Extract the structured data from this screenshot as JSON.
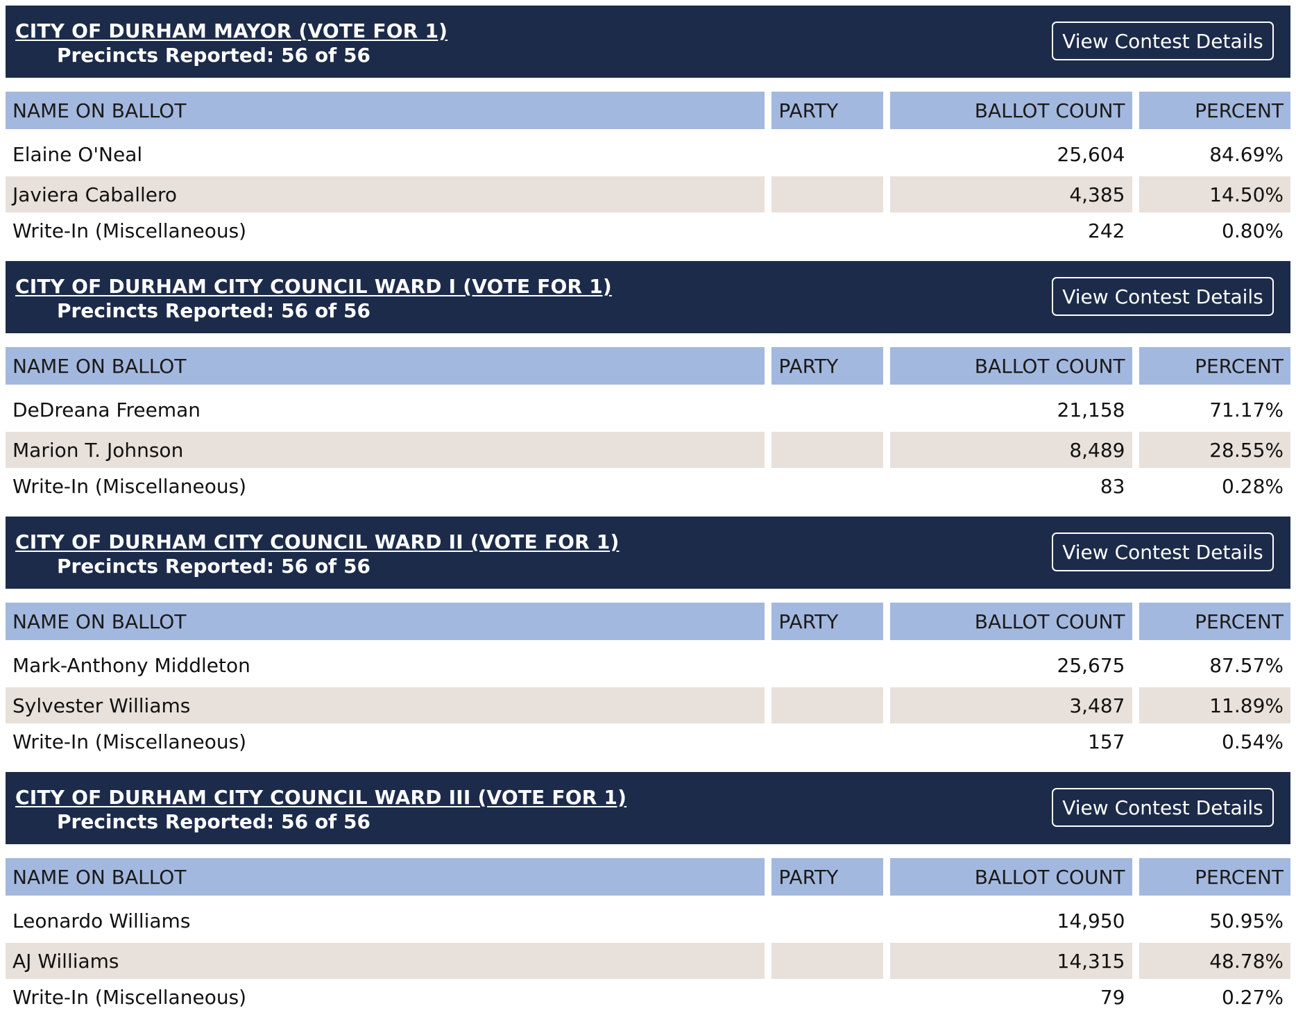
{
  "contests": [
    {
      "title": "CITY OF DURHAM MAYOR (VOTE FOR 1)",
      "precincts_label": "Precincts Reported:",
      "precincts_value": "56 of 56",
      "button_label": "View Contest Details",
      "columns": [
        "NAME ON BALLOT",
        "PARTY",
        "BALLOT COUNT",
        "PERCENT"
      ],
      "rows": [
        {
          "name": "Elaine O'Neal",
          "party": "",
          "count": "25,604",
          "percent": "84.69%"
        },
        {
          "name": "Javiera Caballero",
          "party": "",
          "count": "4,385",
          "percent": "14.50%"
        },
        {
          "name": "Write-In (Miscellaneous)",
          "party": "",
          "count": "242",
          "percent": "0.80%"
        }
      ]
    },
    {
      "title": "CITY OF DURHAM CITY COUNCIL WARD I (VOTE FOR 1)",
      "precincts_label": "Precincts Reported:",
      "precincts_value": "56 of 56",
      "button_label": "View Contest Details",
      "columns": [
        "NAME ON BALLOT",
        "PARTY",
        "BALLOT COUNT",
        "PERCENT"
      ],
      "rows": [
        {
          "name": "DeDreana Freeman",
          "party": "",
          "count": "21,158",
          "percent": "71.17%"
        },
        {
          "name": "Marion T. Johnson",
          "party": "",
          "count": "8,489",
          "percent": "28.55%"
        },
        {
          "name": "Write-In (Miscellaneous)",
          "party": "",
          "count": "83",
          "percent": "0.28%"
        }
      ]
    },
    {
      "title": "CITY OF DURHAM CITY COUNCIL WARD II (VOTE FOR 1)",
      "precincts_label": "Precincts Reported:",
      "precincts_value": "56 of 56",
      "button_label": "View Contest Details",
      "columns": [
        "NAME ON BALLOT",
        "PARTY",
        "BALLOT COUNT",
        "PERCENT"
      ],
      "rows": [
        {
          "name": "Mark-Anthony Middleton",
          "party": "",
          "count": "25,675",
          "percent": "87.57%"
        },
        {
          "name": "Sylvester Williams",
          "party": "",
          "count": "3,487",
          "percent": "11.89%"
        },
        {
          "name": "Write-In (Miscellaneous)",
          "party": "",
          "count": "157",
          "percent": "0.54%"
        }
      ]
    },
    {
      "title": "CITY OF DURHAM CITY COUNCIL WARD III (VOTE FOR 1)",
      "precincts_label": "Precincts Reported:",
      "precincts_value": "56 of 56",
      "button_label": "View Contest Details",
      "columns": [
        "NAME ON BALLOT",
        "PARTY",
        "BALLOT COUNT",
        "PERCENT"
      ],
      "rows": [
        {
          "name": "Leonardo Williams",
          "party": "",
          "count": "14,950",
          "percent": "50.95%"
        },
        {
          "name": "AJ Williams",
          "party": "",
          "count": "14,315",
          "percent": "48.78%"
        },
        {
          "name": "Write-In (Miscellaneous)",
          "party": "",
          "count": "79",
          "percent": "0.27%"
        }
      ]
    }
  ],
  "colors": {
    "header_bg": "#1c2b4a",
    "column_header_bg": "#a3b8de",
    "alt_row_bg": "#e8e0da"
  }
}
